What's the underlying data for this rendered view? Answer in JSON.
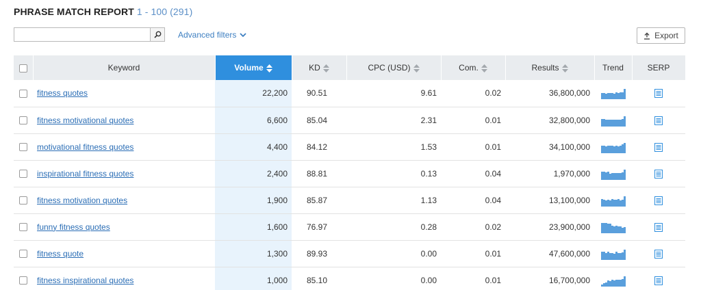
{
  "header": {
    "title": "PHRASE MATCH REPORT",
    "range": "1 - 100 (291)"
  },
  "search": {
    "value": "",
    "placeholder": ""
  },
  "filters": {
    "advanced_label": "Advanced filters"
  },
  "toolbar": {
    "export_label": "Export"
  },
  "colors": {
    "accent": "#2f8fde",
    "link": "#2a6db5",
    "trend_bar": "#5a9fdc",
    "volume_bg": "#e8f3fc"
  },
  "table": {
    "columns": [
      "Keyword",
      "Volume",
      "KD",
      "CPC (USD)",
      "Com.",
      "Results",
      "Trend",
      "SERP"
    ],
    "rows": [
      {
        "keyword": "fitness quotes",
        "volume": "22,200",
        "kd": "90.51",
        "cpc": "9.61",
        "com": "0.02",
        "results": "36,800,000",
        "trend": [
          0.55,
          0.55,
          0.5,
          0.55,
          0.55,
          0.55,
          0.5,
          0.6,
          0.55,
          0.6,
          0.65,
          0.95
        ]
      },
      {
        "keyword": "fitness motivational quotes",
        "volume": "6,600",
        "kd": "85.04",
        "cpc": "2.31",
        "com": "0.01",
        "results": "32,800,000",
        "trend": [
          0.7,
          0.7,
          0.6,
          0.65,
          0.6,
          0.65,
          0.6,
          0.6,
          0.65,
          0.65,
          0.7,
          0.95
        ]
      },
      {
        "keyword": "motivational fitness quotes",
        "volume": "4,400",
        "kd": "84.12",
        "cpc": "1.53",
        "com": "0.01",
        "results": "34,100,000",
        "trend": [
          0.7,
          0.7,
          0.65,
          0.7,
          0.7,
          0.7,
          0.6,
          0.7,
          0.65,
          0.7,
          0.8,
          0.95
        ]
      },
      {
        "keyword": "inspirational fitness quotes",
        "volume": "2,400",
        "kd": "88.81",
        "cpc": "0.13",
        "com": "0.04",
        "results": "1,970,000",
        "trend": [
          0.75,
          0.75,
          0.7,
          0.75,
          0.55,
          0.6,
          0.6,
          0.6,
          0.65,
          0.6,
          0.7,
          0.95
        ]
      },
      {
        "keyword": "fitness motivation quotes",
        "volume": "1,900",
        "kd": "85.87",
        "cpc": "1.13",
        "com": "0.04",
        "results": "13,100,000",
        "trend": [
          0.7,
          0.6,
          0.55,
          0.65,
          0.55,
          0.7,
          0.6,
          0.6,
          0.7,
          0.55,
          0.65,
          0.95
        ]
      },
      {
        "keyword": "funny fitness quotes",
        "volume": "1,600",
        "kd": "76.97",
        "cpc": "0.28",
        "com": "0.02",
        "results": "23,900,000",
        "trend": [
          0.95,
          0.95,
          0.95,
          0.9,
          0.9,
          0.7,
          0.65,
          0.7,
          0.65,
          0.6,
          0.5,
          0.55
        ]
      },
      {
        "keyword": "fitness quote",
        "volume": "1,300",
        "kd": "89.93",
        "cpc": "0.00",
        "com": "0.01",
        "results": "47,600,000",
        "trend": [
          0.75,
          0.75,
          0.65,
          0.75,
          0.6,
          0.65,
          0.55,
          0.75,
          0.6,
          0.65,
          0.7,
          0.95
        ]
      },
      {
        "keyword": "fitness inspirational quotes",
        "volume": "1,000",
        "kd": "85.10",
        "cpc": "0.00",
        "com": "0.01",
        "results": "16,700,000",
        "trend": [
          0.2,
          0.3,
          0.35,
          0.55,
          0.5,
          0.6,
          0.55,
          0.6,
          0.65,
          0.6,
          0.7,
          0.95
        ]
      }
    ]
  }
}
